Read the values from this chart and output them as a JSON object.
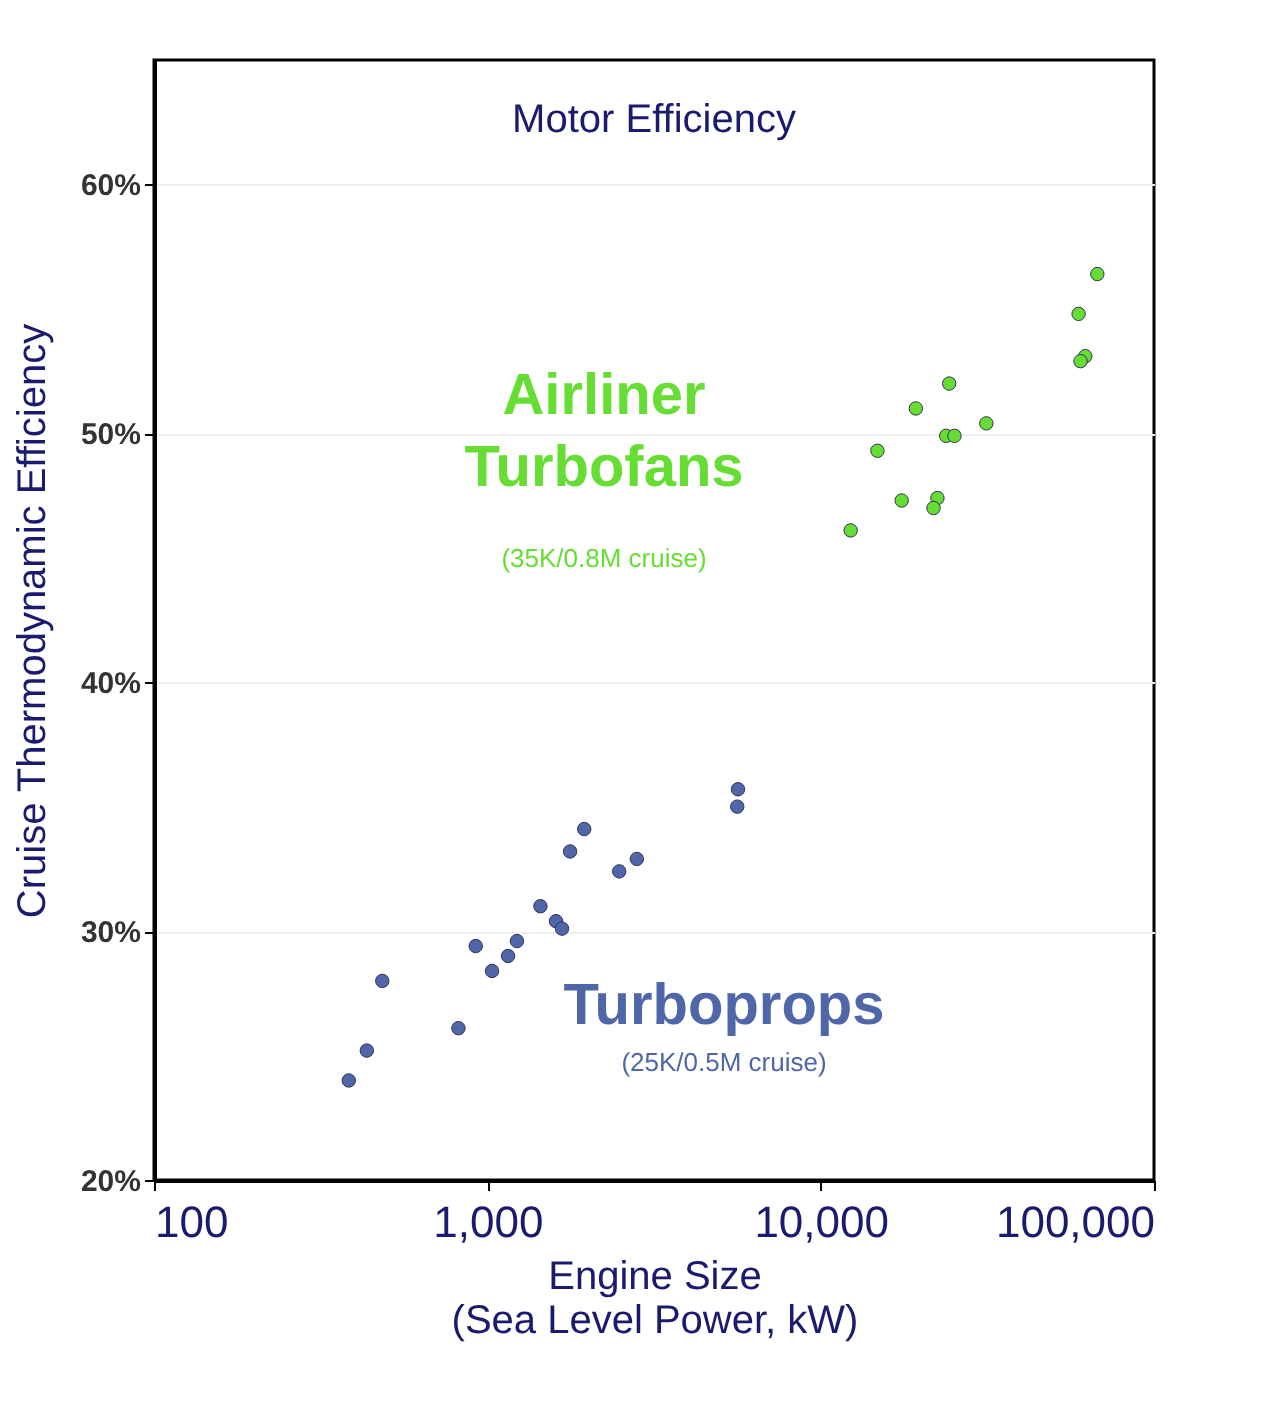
{
  "chart_data": {
    "type": "scatter",
    "title": "Motor Efficiency",
    "xlabel": "Engine Size\n(Sea Level Power, kW)",
    "ylabel": "Cruise Thermodynamic Efficiency",
    "log": "x",
    "grid": "y",
    "marker": "circle",
    "legend": false,
    "xlim": [
      100,
      100000
    ],
    "xticks": [
      {
        "value": 100,
        "label": "100"
      },
      {
        "value": 1000,
        "label": "1,000"
      },
      {
        "value": 10000,
        "label": "10,000"
      },
      {
        "value": 100000,
        "label": "100,000"
      }
    ],
    "ylim": [
      20,
      65
    ],
    "yticks": [
      {
        "value": 20,
        "label": "20%"
      },
      {
        "value": 30,
        "label": "30%"
      },
      {
        "value": 40,
        "label": "40%"
      },
      {
        "value": 50,
        "label": "50%"
      },
      {
        "value": 60,
        "label": "60%"
      }
    ],
    "annotations": [
      "(35K/0.8M cruise)",
      "(25K/0.5M cruise)"
    ],
    "series": [
      {
        "name": "Airliner Turbofans",
        "color": "#66dd33",
        "x": [
          67600,
          59400,
          62200,
          60200,
          24300,
          19300,
          31400,
          23800,
          25200,
          14800,
          17500,
          22400,
          21800,
          12300
        ],
        "values": [
          56.4,
          54.8,
          53.1,
          52.9,
          52.0,
          51.0,
          50.4,
          49.9,
          49.9,
          49.3,
          47.3,
          47.4,
          47.0,
          46.1
        ]
      },
      {
        "name": "Turboprops",
        "color": "#4f67a8",
        "x": [
          384,
          435,
          484,
          819,
          923,
          1033,
          1154,
          1227,
          1443,
          1607,
          1675,
          1771,
          1953,
          2487,
          2808,
          5650,
          5620
        ],
        "values": [
          24.0,
          25.2,
          28.0,
          26.1,
          29.4,
          28.4,
          29.0,
          29.6,
          31.0,
          30.4,
          30.1,
          33.2,
          34.1,
          32.4,
          32.9,
          35.7,
          35.0
        ]
      }
    ]
  }
}
